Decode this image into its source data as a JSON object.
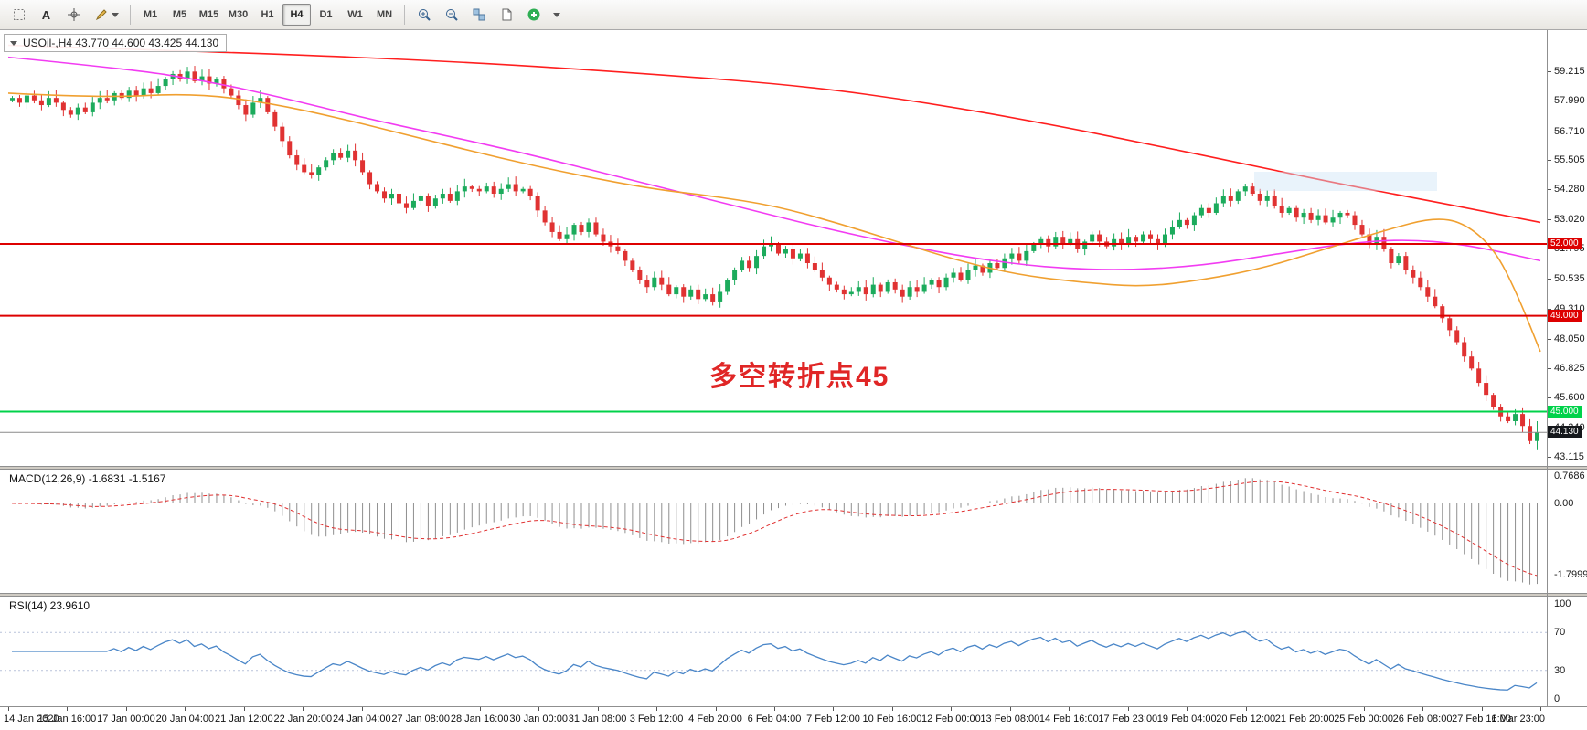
{
  "toolbar": {
    "text_tool_label": "A",
    "timeframes": [
      {
        "label": "M1",
        "active": false
      },
      {
        "label": "M5",
        "active": false
      },
      {
        "label": "M15",
        "active": false
      },
      {
        "label": "M30",
        "active": false
      },
      {
        "label": "H1",
        "active": false
      },
      {
        "label": "H4",
        "active": true
      },
      {
        "label": "D1",
        "active": false
      },
      {
        "label": "W1",
        "active": false
      },
      {
        "label": "MN",
        "active": false
      }
    ],
    "icons": [
      "marquee-tool",
      "text-tool",
      "crosshair-tool",
      "draw-tools-dropdown",
      "zoom-in",
      "zoom-out",
      "tile-windows",
      "new-chart",
      "add-indicator",
      "chart-options-dropdown"
    ]
  },
  "main_chart": {
    "symbol_label": "USOil-,H4  43.770 44.600 43.425 44.130",
    "annotation": "多空转折点45"
  },
  "chart_data": {
    "type": "candlestick",
    "symbol": "USOil-",
    "timeframe": "H4",
    "ohlc_header": {
      "open": "43.770",
      "high": "44.600",
      "low": "43.425",
      "close": "44.130"
    },
    "price_axis": {
      "min": 42.73,
      "max": 60.93,
      "ticks": [
        59.215,
        57.99,
        56.71,
        55.505,
        54.28,
        53.02,
        51.795,
        50.535,
        49.31,
        48.05,
        46.825,
        45.6,
        44.34,
        43.115
      ]
    },
    "closes": [
      58.1,
      57.9,
      58.2,
      58.0,
      57.8,
      58.1,
      57.9,
      57.6,
      57.4,
      57.7,
      57.5,
      57.9,
      58.1,
      58.0,
      58.3,
      58.1,
      58.4,
      58.2,
      58.5,
      58.3,
      58.6,
      58.9,
      59.1,
      58.9,
      59.2,
      58.8,
      59.0,
      58.7,
      58.9,
      58.5,
      58.2,
      57.8,
      57.4,
      57.9,
      58.1,
      57.5,
      56.9,
      56.3,
      55.7,
      55.3,
      55.0,
      54.9,
      55.2,
      55.5,
      55.8,
      55.6,
      55.9,
      55.5,
      55.0,
      54.5,
      54.2,
      53.9,
      54.1,
      53.7,
      53.5,
      53.8,
      54.0,
      53.6,
      53.9,
      54.1,
      53.8,
      54.2,
      54.4,
      54.3,
      54.2,
      54.4,
      54.1,
      54.3,
      54.5,
      54.2,
      54.3,
      54.0,
      53.4,
      52.9,
      52.5,
      52.2,
      52.4,
      52.8,
      52.5,
      52.9,
      52.4,
      52.1,
      51.9,
      51.7,
      51.3,
      50.9,
      50.5,
      50.2,
      50.6,
      50.3,
      49.9,
      50.2,
      49.8,
      50.1,
      49.7,
      49.9,
      49.6,
      50.0,
      50.5,
      50.9,
      51.3,
      51.0,
      51.5,
      51.9,
      52.0,
      51.6,
      51.8,
      51.4,
      51.6,
      51.2,
      50.9,
      50.6,
      50.3,
      50.1,
      49.9,
      50.0,
      50.2,
      49.9,
      50.3,
      50.0,
      50.4,
      50.1,
      49.8,
      50.2,
      50.0,
      50.3,
      50.5,
      50.2,
      50.6,
      50.8,
      50.5,
      50.9,
      51.1,
      50.8,
      51.2,
      51.0,
      51.4,
      51.6,
      51.3,
      51.7,
      52.0,
      52.2,
      51.9,
      52.3,
      52.0,
      52.2,
      51.8,
      52.1,
      52.4,
      52.1,
      51.9,
      52.2,
      52.0,
      52.3,
      52.1,
      52.4,
      52.2,
      52.0,
      52.4,
      52.7,
      53.0,
      52.8,
      53.2,
      53.5,
      53.3,
      53.7,
      54.0,
      53.8,
      54.2,
      54.4,
      54.1,
      53.8,
      54.0,
      53.6,
      53.3,
      53.5,
      53.1,
      53.3,
      53.0,
      53.2,
      52.9,
      53.1,
      53.3,
      53.2,
      52.8,
      52.4,
      52.0,
      52.3,
      51.8,
      51.2,
      51.5,
      50.9,
      50.6,
      50.2,
      49.8,
      49.4,
      48.9,
      48.4,
      47.9,
      47.3,
      46.8,
      46.2,
      45.7,
      45.2,
      44.8,
      44.6,
      44.9,
      44.4,
      43.77,
      44.13
    ],
    "current_bar": {
      "open": 43.77,
      "high": 44.6,
      "low": 43.425,
      "close": 44.13
    },
    "moving_averages": [
      {
        "name": "ma-slow-red",
        "color": "#ff1f1f",
        "points": [
          [
            0,
            60.3
          ],
          [
            0.15,
            60.0
          ],
          [
            0.3,
            59.6
          ],
          [
            0.42,
            59.1
          ],
          [
            0.52,
            58.6
          ],
          [
            0.6,
            57.9
          ],
          [
            0.68,
            57.0
          ],
          [
            0.75,
            56.1
          ],
          [
            0.81,
            55.3
          ],
          [
            0.87,
            54.5
          ],
          [
            0.92,
            53.9
          ],
          [
            0.96,
            53.4
          ],
          [
            1,
            52.9
          ]
        ]
      },
      {
        "name": "ma-mid-magenta",
        "color": "#f23cf2",
        "points": [
          [
            0,
            59.8
          ],
          [
            0.08,
            59.3
          ],
          [
            0.13,
            58.8
          ],
          [
            0.18,
            58.1
          ],
          [
            0.23,
            57.3
          ],
          [
            0.28,
            56.6
          ],
          [
            0.33,
            55.9
          ],
          [
            0.38,
            55.1
          ],
          [
            0.43,
            54.3
          ],
          [
            0.48,
            53.5
          ],
          [
            0.53,
            52.7
          ],
          [
            0.58,
            52.0
          ],
          [
            0.63,
            51.4
          ],
          [
            0.68,
            51.0
          ],
          [
            0.73,
            50.9
          ],
          [
            0.78,
            51.1
          ],
          [
            0.83,
            51.6
          ],
          [
            0.87,
            52.0
          ],
          [
            0.91,
            52.2
          ],
          [
            0.95,
            52.0
          ],
          [
            1,
            51.3
          ]
        ]
      },
      {
        "name": "ma-fast-orange",
        "color": "#f0a030",
        "points": [
          [
            0,
            58.3
          ],
          [
            0.06,
            58.1
          ],
          [
            0.12,
            58.3
          ],
          [
            0.17,
            57.9
          ],
          [
            0.22,
            57.2
          ],
          [
            0.27,
            56.4
          ],
          [
            0.32,
            55.6
          ],
          [
            0.37,
            54.9
          ],
          [
            0.42,
            54.3
          ],
          [
            0.46,
            54.0
          ],
          [
            0.5,
            53.6
          ],
          [
            0.54,
            52.9
          ],
          [
            0.58,
            52.1
          ],
          [
            0.62,
            51.3
          ],
          [
            0.66,
            50.7
          ],
          [
            0.7,
            50.4
          ],
          [
            0.74,
            50.2
          ],
          [
            0.78,
            50.5
          ],
          [
            0.82,
            51.0
          ],
          [
            0.86,
            51.8
          ],
          [
            0.9,
            52.6
          ],
          [
            0.93,
            53.1
          ],
          [
            0.95,
            52.9
          ],
          [
            0.97,
            51.8
          ],
          [
            0.985,
            49.9
          ],
          [
            1,
            47.5
          ]
        ]
      }
    ],
    "horizontal_lines": [
      {
        "value": 52.0,
        "label": "52.000",
        "color": "#dd0000"
      },
      {
        "value": 49.0,
        "label": "49.000",
        "color": "#dd0000"
      },
      {
        "value": 45.0,
        "label": "45.000",
        "color": "#00d24a"
      }
    ],
    "current_price": {
      "value": 44.13,
      "label": "44.130",
      "line_color": "#8a8a8a",
      "badge_color": "#15181c"
    },
    "time_labels": [
      "14 Jan 2020",
      "15 Jan 16:00",
      "17 Jan 00:00",
      "20 Jan 04:00",
      "21 Jan 12:00",
      "22 Jan 20:00",
      "24 Jan 04:00",
      "27 Jan 08:00",
      "28 Jan 16:00",
      "30 Jan 00:00",
      "31 Jan 08:00",
      "3 Feb 12:00",
      "4 Feb 20:00",
      "6 Feb 04:00",
      "7 Feb 12:00",
      "10 Feb 16:00",
      "12 Feb 00:00",
      "13 Feb 08:00",
      "14 Feb 16:00",
      "17 Feb 23:00",
      "19 Feb 04:00",
      "20 Feb 12:00",
      "21 Feb 20:00",
      "25 Feb 00:00",
      "26 Feb 08:00",
      "27 Feb 16:00",
      "1 Mar 23:00"
    ],
    "indicators": {
      "macd": {
        "label": "MACD(12,26,9) -1.6831 -1.5167",
        "fast": 12,
        "slow": 26,
        "signal_period": 9,
        "values_text": [
          "-1.6831",
          "-1.5167"
        ],
        "axis_labels": [
          "0.7686",
          "0.00",
          "-1.7999"
        ]
      },
      "rsi": {
        "label": "RSI(14) 23.9610",
        "period": 14,
        "value_text": "23.9610",
        "levels": [
          100,
          70,
          30,
          0
        ]
      }
    },
    "colors": {
      "candle_up": "#1cab5c",
      "candle_down": "#e03232",
      "macd_histogram": "#8f8f8f",
      "macd_signal": "#e03030",
      "rsi_line": "#4a86c8",
      "rsi_level": "#b8c2da",
      "annotation": "#e02626"
    }
  }
}
